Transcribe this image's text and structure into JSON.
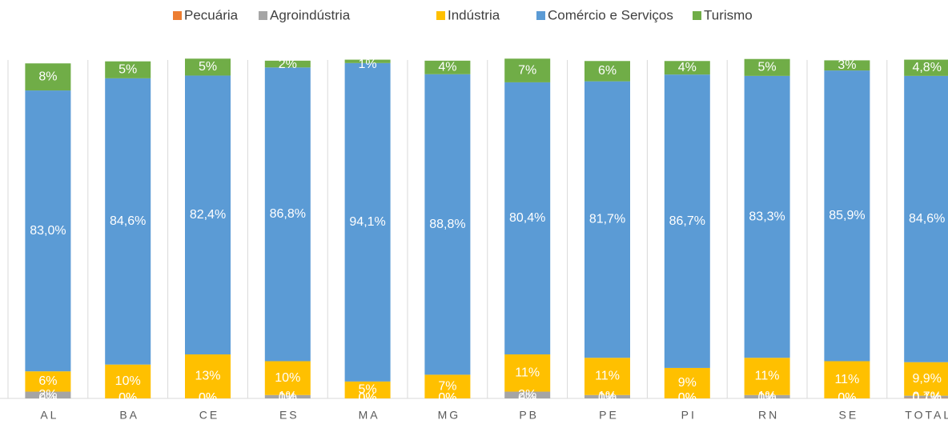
{
  "chart_data": {
    "type": "stacked_bar",
    "categories": [
      "AL",
      "BA",
      "CE",
      "ES",
      "MA",
      "MG",
      "PB",
      "PE",
      "PI",
      "RN",
      "SE",
      "TOTAL"
    ],
    "ylim": [
      0,
      100
    ],
    "series": [
      {
        "name": "Pecuária",
        "color": "#ED7D31",
        "values": [
          0,
          0,
          0,
          0,
          0,
          0,
          0,
          0,
          0,
          0,
          0,
          0.1
        ],
        "value_labels": [
          "0%",
          "0%",
          "0%",
          "0%",
          "0%",
          "0%",
          "0%",
          "0%",
          "0%",
          "0%",
          "0%",
          "0,1%"
        ]
      },
      {
        "name": "Agroindústria",
        "color": "#A5A5A5",
        "values": [
          2,
          0,
          0,
          1,
          0,
          0,
          2,
          1,
          0,
          1,
          0,
          0.7
        ],
        "value_labels": [
          "2%",
          "0%",
          "0%",
          "1%",
          "0%",
          "0%",
          "2%",
          "1%",
          "0%",
          "1%",
          "0%",
          "0,7%"
        ]
      },
      {
        "name": "Indústria",
        "color": "#FFC000",
        "values": [
          6,
          10,
          13,
          10,
          5,
          7,
          11,
          11,
          9,
          11,
          11,
          9.9
        ],
        "value_labels": [
          "6%",
          "10%",
          "13%",
          "10%",
          "5%",
          "7%",
          "11%",
          "11%",
          "9%",
          "11%",
          "11%",
          "9,9%"
        ]
      },
      {
        "name": "Comércio e Serviços",
        "color": "#5B9BD5",
        "values": [
          83.0,
          84.6,
          82.4,
          86.8,
          94.1,
          88.8,
          80.4,
          81.7,
          86.7,
          83.3,
          85.9,
          84.6
        ],
        "value_labels": [
          "83,0%",
          "84,6%",
          "82,4%",
          "86,8%",
          "94,1%",
          "88,8%",
          "80,4%",
          "81,7%",
          "86,7%",
          "83,3%",
          "85,9%",
          "84,6%"
        ]
      },
      {
        "name": "Turismo",
        "color": "#70AD47",
        "values": [
          8,
          5,
          5,
          2,
          1,
          4,
          7,
          6,
          4,
          5,
          3,
          4.8
        ],
        "value_labels": [
          "8%",
          "5%",
          "5%",
          "2%",
          "1%",
          "4%",
          "7%",
          "6%",
          "4%",
          "5%",
          "3%",
          "4,8%"
        ]
      }
    ]
  }
}
